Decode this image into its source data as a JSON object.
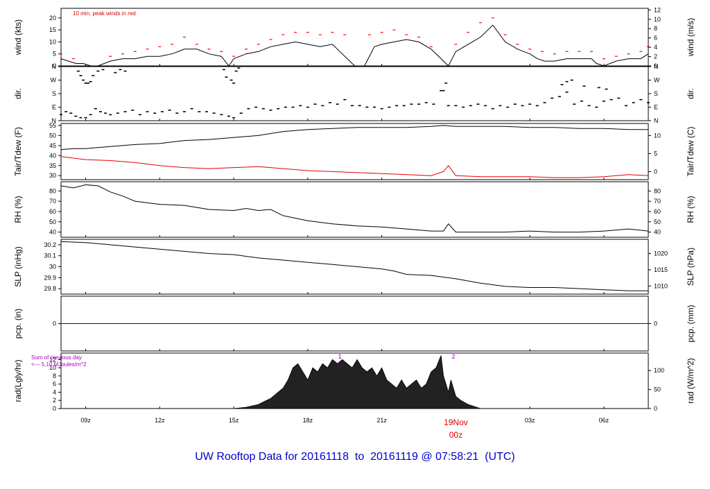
{
  "title": "UW Rooftop Data for 20161118  to  20161119 @ 07:58:21  (UTC)",
  "colors": {
    "title": "#0000cc",
    "accent": "#e00000",
    "purple": "#a000c0",
    "blue": "#0000cc"
  },
  "x_axis": {
    "ticks": [
      {
        "t": 9,
        "label": "09z"
      },
      {
        "t": 12,
        "label": "12z"
      },
      {
        "t": 15,
        "label": "15z"
      },
      {
        "t": 18,
        "label": "18z"
      },
      {
        "t": 21,
        "label": "21z"
      },
      {
        "t": 27,
        "label": "03z"
      },
      {
        "t": 30,
        "label": "06z"
      }
    ],
    "date_label": "19Nov",
    "date_sub": "00z",
    "date_t": 24
  },
  "chart_data": [
    {
      "id": "wind",
      "type": "line",
      "ylabel": "wind (kts)",
      "ylabel_right": "wind (m/s)",
      "ylim": [
        0,
        24
      ],
      "ylim_right": [
        0,
        12.35
      ],
      "yticks": [
        0,
        5,
        10,
        15,
        20
      ],
      "yticks_right": [
        0,
        2,
        4,
        6,
        8,
        10,
        12
      ],
      "annotation": "10 min. peak winds in red",
      "series": [
        {
          "name": "wind",
          "color": "#000000",
          "t": [
            8,
            8.3,
            8.6,
            8.9,
            9.2,
            9.5,
            10,
            10.5,
            11,
            11.5,
            12,
            12.5,
            13,
            13.5,
            14,
            14.5,
            14.8,
            15,
            15.5,
            16,
            16.5,
            17,
            17.5,
            18,
            18.5,
            19,
            19.3,
            19.6,
            19.9,
            20,
            20.3,
            20.7,
            21,
            21.5,
            22,
            22.5,
            23,
            23.4,
            23.7,
            24,
            24.5,
            25,
            25.5,
            26,
            26.5,
            27,
            27.3,
            27.6,
            28,
            28.5,
            29,
            29.5,
            29.7,
            30,
            30.5,
            31,
            31.5,
            31.8
          ],
          "v": [
            3,
            2,
            1,
            1,
            0,
            0,
            2,
            3,
            3,
            4,
            4,
            5,
            7,
            7,
            5,
            4,
            0,
            3,
            5,
            6,
            8,
            9,
            10,
            9,
            8,
            9,
            6,
            3,
            0,
            0,
            0,
            8,
            9,
            10,
            11,
            10,
            7,
            3,
            0,
            6,
            9,
            12,
            17,
            10,
            7,
            5,
            3,
            2,
            2,
            3,
            3,
            3,
            1,
            0,
            2,
            3,
            3,
            5
          ]
        },
        {
          "name": "peak",
          "color": "#ff0000",
          "t": [
            8,
            8.5,
            9,
            9.5,
            10,
            10.5,
            11,
            11.5,
            12,
            12.5,
            13,
            13.5,
            14,
            14.5,
            15,
            15.5,
            16,
            16.5,
            17,
            17.5,
            18,
            18.5,
            19,
            19.5,
            20,
            20.5,
            21,
            21.5,
            22,
            22.5,
            23,
            23.5,
            24,
            24.5,
            25,
            25.5,
            26,
            26.5,
            27,
            27.5,
            28,
            28.5,
            29,
            29.5,
            30,
            30.5,
            31,
            31.5,
            31.8
          ],
          "v": [
            5,
            3,
            0,
            0,
            4,
            5,
            6,
            7,
            8,
            9,
            12,
            9,
            7,
            6,
            4,
            7,
            9,
            11,
            13,
            14,
            14,
            13,
            14,
            13,
            0,
            13,
            14,
            15,
            13,
            12,
            8,
            0,
            9,
            14,
            18,
            20,
            13,
            9,
            7,
            6,
            5,
            6,
            6,
            6,
            3,
            4,
            5,
            6,
            8
          ]
        }
      ]
    },
    {
      "id": "dir",
      "type": "scatter",
      "ylabel": "dir.",
      "ylabel_right": "dir.",
      "ylim": [
        0,
        360
      ],
      "yticks": [
        0,
        90,
        180,
        270,
        360
      ],
      "ytick_labels": [
        "N",
        "E",
        "S",
        "W",
        "N"
      ],
      "series": [
        {
          "name": "dir",
          "color": "#000000",
          "t": [
            8,
            8.2,
            8.4,
            8.6,
            8.8,
            9.0,
            9.2,
            9.4,
            9.6,
            9.8,
            10.0,
            10.3,
            10.6,
            10.9,
            11.2,
            11.5,
            11.8,
            12.1,
            12.4,
            12.7,
            13.0,
            13.3,
            13.6,
            13.9,
            14.2,
            14.5,
            14.8,
            15.0,
            15.3,
            15.6,
            15.9,
            16.2,
            16.5,
            16.8,
            17.1,
            17.4,
            17.7,
            18.0,
            18.3,
            18.6,
            18.9,
            19.2,
            19.5,
            19.8,
            20.1,
            20.4,
            20.7,
            21.0,
            21.3,
            21.6,
            21.9,
            22.2,
            22.5,
            22.8,
            23.1,
            23.4,
            23.7,
            24.0,
            24.3,
            24.6,
            24.9,
            25.2,
            25.5,
            25.8,
            26.1,
            26.4,
            26.7,
            27.0,
            27.3,
            27.6,
            27.9,
            28.2,
            28.5,
            28.8,
            29.1,
            29.4,
            29.7,
            30.0,
            30.3,
            30.6,
            30.9,
            31.2,
            31.5,
            31.8
          ],
          "v": [
            40,
            60,
            50,
            30,
            20,
            20,
            40,
            80,
            60,
            50,
            40,
            50,
            60,
            70,
            40,
            60,
            50,
            60,
            70,
            50,
            60,
            80,
            60,
            60,
            50,
            40,
            30,
            20,
            50,
            80,
            90,
            80,
            70,
            80,
            90,
            90,
            100,
            90,
            110,
            100,
            120,
            110,
            140,
            100,
            100,
            90,
            90,
            80,
            90,
            100,
            100,
            110,
            110,
            120,
            110,
            200,
            100,
            100,
            90,
            100,
            110,
            100,
            80,
            100,
            90,
            110,
            100,
            110,
            100,
            120,
            150,
            160,
            190,
            110,
            130,
            100,
            90,
            130,
            140,
            150,
            100,
            120,
            140,
            120
          ]
        },
        {
          "name": "dir-high",
          "color": "#000000",
          "t": [
            8.7,
            8.8,
            8.9,
            9.0,
            9.1,
            9.2,
            9.3,
            9.5,
            9.7,
            10.2,
            10.4,
            10.6,
            14.6,
            14.7,
            14.9,
            15.0,
            15.1,
            15.2,
            23.5,
            23.6,
            28.3,
            28.5,
            28.7,
            29.2,
            29.8,
            30.1
          ],
          "v": [
            330,
            300,
            270,
            250,
            250,
            260,
            300,
            330,
            340,
            320,
            340,
            330,
            340,
            290,
            270,
            250,
            330,
            350,
            200,
            250,
            240,
            260,
            270,
            230,
            220,
            210
          ]
        }
      ]
    },
    {
      "id": "temp",
      "type": "line",
      "ylabel": "Tair/Tdew (F)",
      "ylabel_right": "Tair/Tdew (C)",
      "ylim": [
        28,
        56
      ],
      "ylim_right": [
        -2.22,
        13.33
      ],
      "yticks": [
        30,
        35,
        40,
        45,
        50,
        55
      ],
      "yticks_right": [
        0,
        5,
        10
      ],
      "series": [
        {
          "name": "Tair",
          "color": "#000000",
          "t": [
            8,
            8.5,
            9,
            10,
            11,
            12,
            13,
            14,
            15,
            16,
            16.5,
            17,
            18,
            19,
            20,
            21,
            22,
            23,
            23.5,
            24,
            25,
            26,
            27,
            28,
            29,
            30,
            31,
            31.8
          ],
          "v": [
            43,
            43.5,
            43.5,
            44.5,
            45.5,
            46,
            47.5,
            48,
            49,
            50,
            51,
            52,
            53,
            53.5,
            54,
            54,
            54,
            54.5,
            55,
            54.5,
            54.5,
            54.5,
            54,
            54,
            53.5,
            53.5,
            53,
            53
          ]
        },
        {
          "name": "Tdew",
          "color": "#e00000",
          "t": [
            8,
            9,
            10,
            11,
            12,
            13,
            14,
            15,
            16,
            17,
            18,
            19,
            20,
            21,
            22,
            23,
            23.5,
            23.7,
            24,
            25,
            26,
            27,
            28,
            29,
            30,
            31,
            31.8
          ],
          "v": [
            39.5,
            38,
            37.5,
            36.5,
            35,
            34,
            33.5,
            34,
            34.5,
            33.5,
            32.5,
            32,
            31.5,
            31,
            30.5,
            30,
            32,
            35,
            30,
            29.5,
            29.5,
            29.5,
            29,
            29,
            29.5,
            30.5,
            30
          ]
        }
      ]
    },
    {
      "id": "rh",
      "type": "line",
      "ylabel": "RH (%)",
      "ylabel_right": "RH (%)",
      "ylim": [
        35,
        89
      ],
      "yticks": [
        40,
        50,
        60,
        70,
        80
      ],
      "yticks_right": [
        40,
        50,
        60,
        70,
        80
      ],
      "series": [
        {
          "name": "RH",
          "color": "#000000",
          "t": [
            8,
            8.5,
            9,
            9.5,
            10,
            10.5,
            11,
            12,
            13,
            14,
            15,
            15.5,
            16,
            16.5,
            17,
            18,
            19,
            20,
            21,
            22,
            23,
            23.5,
            23.7,
            24,
            25,
            26,
            27,
            28,
            29,
            30,
            31,
            31.8
          ],
          "v": [
            85,
            83,
            86,
            85,
            79,
            75,
            70,
            67,
            66,
            62,
            61,
            63,
            61,
            62,
            56,
            51,
            48,
            46,
            45,
            43,
            41,
            41,
            48,
            40,
            40,
            40,
            41,
            40,
            40,
            41,
            43,
            41
          ]
        }
      ]
    },
    {
      "id": "slp",
      "type": "line",
      "ylabel": "SLP (inHg)",
      "ylabel_right": "SLP (hPa)",
      "ylim": [
        29.75,
        30.25
      ],
      "ylim_right": [
        1007.5,
        1024.4
      ],
      "yticks": [
        29.8,
        29.9,
        30.0,
        30.1,
        30.2
      ],
      "yticks_right": [
        1010,
        1015,
        1020
      ],
      "series": [
        {
          "name": "SLP",
          "color": "#000000",
          "t": [
            8,
            9,
            10,
            11,
            12,
            13,
            14,
            15,
            16,
            17,
            18,
            19,
            20,
            21,
            21.5,
            22,
            23,
            24,
            25,
            26,
            27,
            28,
            29,
            30,
            31,
            31.8
          ],
          "v": [
            30.23,
            30.22,
            30.2,
            30.18,
            30.16,
            30.14,
            30.12,
            30.11,
            30.08,
            30.06,
            30.04,
            30.02,
            30.0,
            29.98,
            29.96,
            29.93,
            29.92,
            29.89,
            29.85,
            29.82,
            29.81,
            29.81,
            29.8,
            29.79,
            29.78,
            29.78
          ]
        }
      ]
    },
    {
      "id": "pcp",
      "type": "line",
      "ylabel": "pcp. (in)",
      "ylabel_right": "pcp. (mm)",
      "ylim": [
        -1,
        1
      ],
      "yticks": [
        0
      ],
      "yticks_right": [
        0
      ],
      "series": [
        {
          "name": "pcp",
          "color": "#0000cc",
          "t": [
            8,
            31.8
          ],
          "v": [
            0,
            0
          ]
        }
      ]
    },
    {
      "id": "rad",
      "type": "area",
      "ylabel": "rad(Lgly/hr)",
      "ylabel_right": "rad (W/m^2)",
      "ylim": [
        0,
        13.6
      ],
      "ylim_right": [
        0,
        146
      ],
      "yticks": [
        0,
        2,
        4,
        6,
        8,
        10,
        12
      ],
      "yticks_right": [
        0,
        50,
        100
      ],
      "annotation_1": "Sum of previous day",
      "annotation_2": "<--- 5.10 MJoules/m^2",
      "markers": [
        {
          "t": 19.3,
          "label": "1"
        },
        {
          "t": 23.9,
          "label": "2"
        }
      ],
      "series": [
        {
          "name": "rad",
          "color": "#000000",
          "t": [
            15,
            15.5,
            16,
            16.5,
            17,
            17.2,
            17.4,
            17.6,
            17.8,
            18,
            18.2,
            18.4,
            18.6,
            18.8,
            19,
            19.2,
            19.4,
            19.6,
            19.8,
            20,
            20.2,
            20.4,
            20.6,
            20.8,
            21,
            21.2,
            21.4,
            21.6,
            21.8,
            22,
            22.2,
            22.4,
            22.6,
            22.8,
            23,
            23.2,
            23.4,
            23.5,
            23.6,
            23.7,
            23.8,
            24,
            24.2,
            24.5,
            25
          ],
          "v": [
            0,
            0.3,
            1,
            2.5,
            5,
            7,
            10,
            11,
            9,
            7,
            10,
            9,
            11,
            10,
            12,
            11,
            12,
            11,
            10,
            12,
            10,
            9,
            10,
            8,
            10,
            7,
            6,
            5,
            7,
            5,
            6,
            7,
            5,
            6,
            9,
            10,
            13,
            8,
            6,
            4,
            7,
            3,
            2,
            1,
            0
          ]
        }
      ]
    }
  ]
}
